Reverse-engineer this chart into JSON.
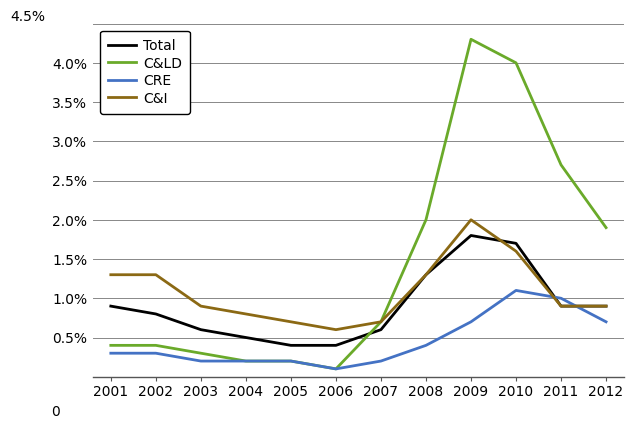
{
  "years": [
    2001,
    2002,
    2003,
    2004,
    2005,
    2006,
    2007,
    2008,
    2009,
    2010,
    2011,
    2012
  ],
  "Total": [
    0.009,
    0.008,
    0.006,
    0.005,
    0.004,
    0.004,
    0.006,
    0.013,
    0.018,
    0.017,
    0.009,
    0.009
  ],
  "CALD": [
    0.004,
    0.004,
    0.003,
    0.002,
    0.002,
    0.001,
    0.007,
    0.02,
    0.043,
    0.04,
    0.027,
    0.019
  ],
  "CRE": [
    0.003,
    0.003,
    0.002,
    0.002,
    0.002,
    0.001,
    0.002,
    0.004,
    0.007,
    0.011,
    0.01,
    0.007
  ],
  "CI": [
    0.013,
    0.013,
    0.009,
    0.008,
    0.007,
    0.006,
    0.007,
    0.013,
    0.02,
    0.016,
    0.009,
    0.009
  ],
  "colors": {
    "Total": "#000000",
    "CALD": "#6aaa2a",
    "CRE": "#4472c4",
    "CI": "#8b6914"
  },
  "labels": {
    "Total": "Total",
    "CALD": "C&LD",
    "CRE": "CRE",
    "CI": "C&I"
  },
  "ylim": [
    0,
    0.045
  ],
  "yticks": [
    0.005,
    0.01,
    0.015,
    0.02,
    0.025,
    0.03,
    0.035,
    0.04,
    0.045
  ],
  "ytick_labels": [
    "0.5%",
    "1.0%",
    "1.5%",
    "2.0%",
    "2.5%",
    "3.0%",
    "3.5%",
    "4.0%",
    "4.5%"
  ],
  "background_color": "#ffffff",
  "grid_color": "#888888",
  "linewidth": 2.0,
  "legend_fontsize": 10,
  "tick_fontsize": 10
}
